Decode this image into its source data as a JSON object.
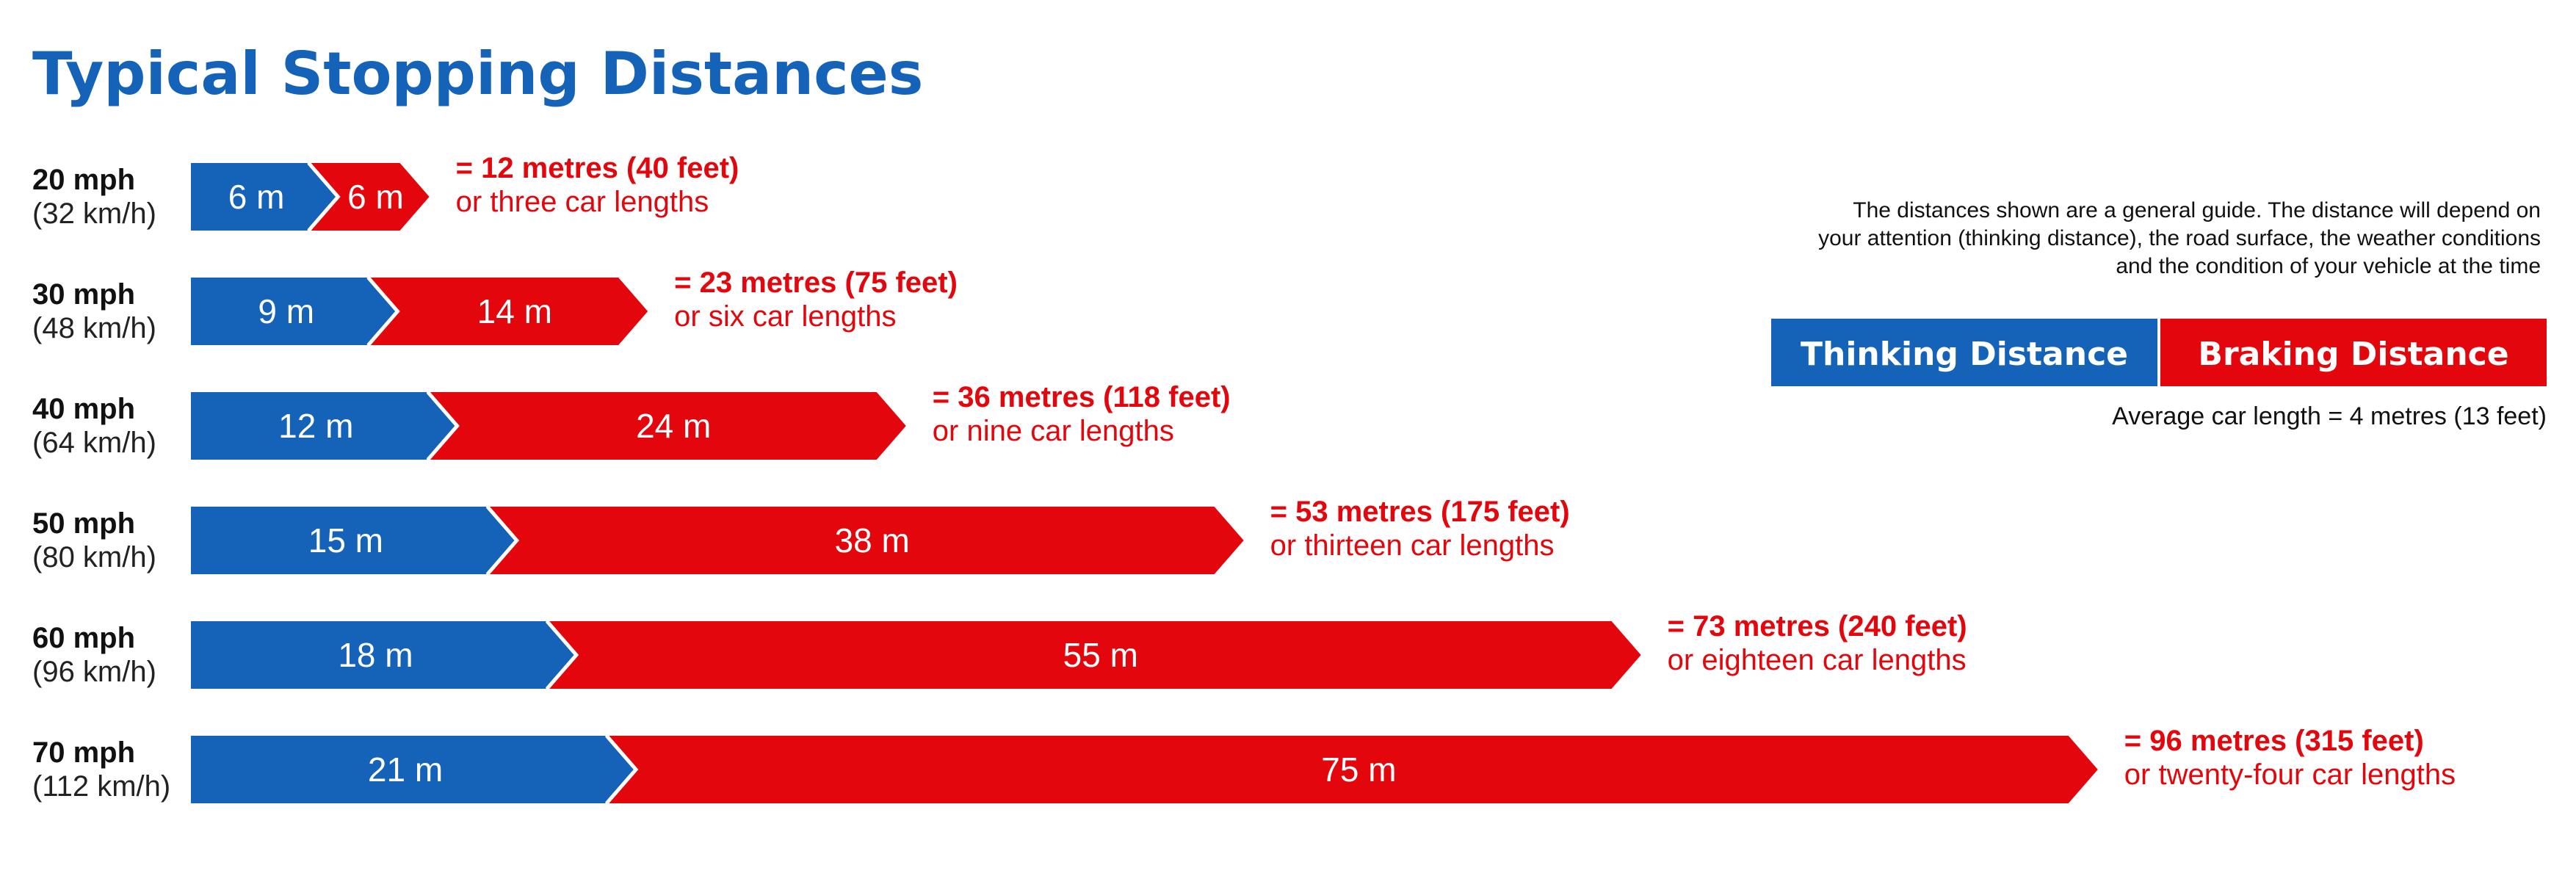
{
  "chart_data": {
    "type": "bar",
    "stacked": true,
    "orientation": "horizontal",
    "title": "Typical Stopping Distances",
    "units": "m",
    "categories": [
      {
        "mph": "20 mph",
        "kmh": "(32 km/h)"
      },
      {
        "mph": "30 mph",
        "kmh": "(48 km/h)"
      },
      {
        "mph": "40 mph",
        "kmh": "(64 km/h)"
      },
      {
        "mph": "50 mph",
        "kmh": "(80 km/h)"
      },
      {
        "mph": "60 mph",
        "kmh": "(96 km/h)"
      },
      {
        "mph": "70 mph",
        "kmh": "(112 km/h)"
      }
    ],
    "series": [
      {
        "name": "Thinking Distance",
        "color": "#1463b8",
        "values": [
          6,
          9,
          12,
          15,
          18,
          21
        ],
        "labels": [
          "6 m",
          "9 m",
          "12 m",
          "15 m",
          "18 m",
          "21 m"
        ]
      },
      {
        "name": "Braking Distance",
        "color": "#e3070d",
        "values": [
          6,
          14,
          24,
          38,
          55,
          75
        ],
        "labels": [
          "6 m",
          "14 m",
          "24 m",
          "38 m",
          "55 m",
          "75 m"
        ]
      }
    ],
    "totals": [
      {
        "value": 12,
        "text": "= 12 metres (40 feet)",
        "cars": "or three car lengths"
      },
      {
        "value": 23,
        "text": "= 23 metres (75 feet)",
        "cars": "or six car lengths"
      },
      {
        "value": 36,
        "text": "= 36 metres (118 feet)",
        "cars": "or nine car lengths"
      },
      {
        "value": 53,
        "text": "= 53 metres (175 feet)",
        "cars": "or thirteen car lengths"
      },
      {
        "value": 73,
        "text": "= 73 metres (240 feet)",
        "cars": "or eighteen car lengths"
      },
      {
        "value": 96,
        "text": "= 96 metres (315 feet)",
        "cars": "or twenty-four car lengths"
      }
    ],
    "note": [
      "The distances shown are a general guide. The distance will depend on",
      "your attention (thinking distance), the road surface, the weather conditions",
      "and the condition of your vehicle at the time"
    ],
    "car_length_note": "Average car length = 4 metres (13 feet)",
    "legend_position": "top-right"
  }
}
